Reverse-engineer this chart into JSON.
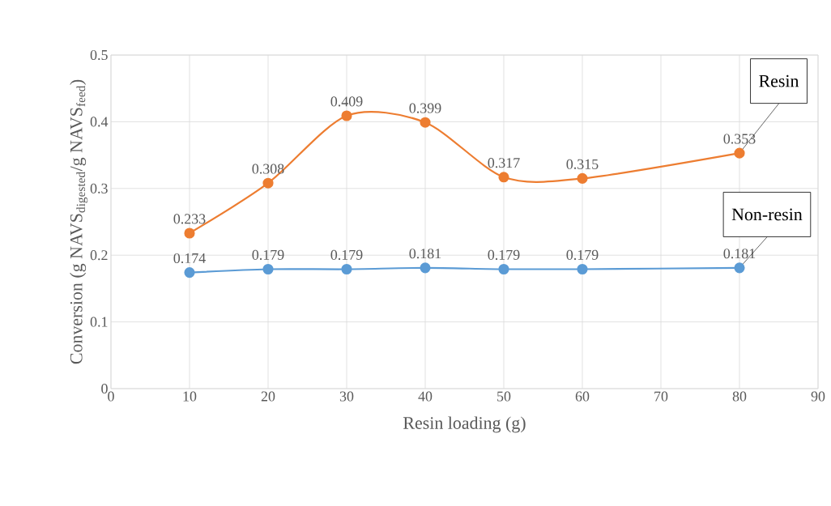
{
  "chart_data": {
    "type": "line",
    "xlabel": "Resin loading (g)",
    "ylabel": "Conversion (g NAVS$_{digested}$/g NAVS$_{feed}$)",
    "x": [
      10,
      20,
      30,
      40,
      50,
      60,
      80
    ],
    "series": [
      {
        "name": "Resin",
        "color": "#ed7d31",
        "values": [
          0.233,
          0.308,
          0.409,
          0.399,
          0.317,
          0.315,
          0.353
        ]
      },
      {
        "name": "Non-resin",
        "color": "#5b9bd5",
        "values": [
          0.174,
          0.179,
          0.179,
          0.181,
          0.179,
          0.179,
          0.181
        ]
      }
    ],
    "xlim": [
      0,
      90
    ],
    "xticks": [
      0,
      10,
      20,
      30,
      40,
      50,
      60,
      70,
      80,
      90
    ],
    "ylim": [
      0,
      0.5
    ],
    "yticks": [
      0,
      0.1,
      0.2,
      0.3,
      0.4,
      0.5
    ],
    "grid": true,
    "marker": "circle",
    "line_style": "solid",
    "data_labels": true
  }
}
